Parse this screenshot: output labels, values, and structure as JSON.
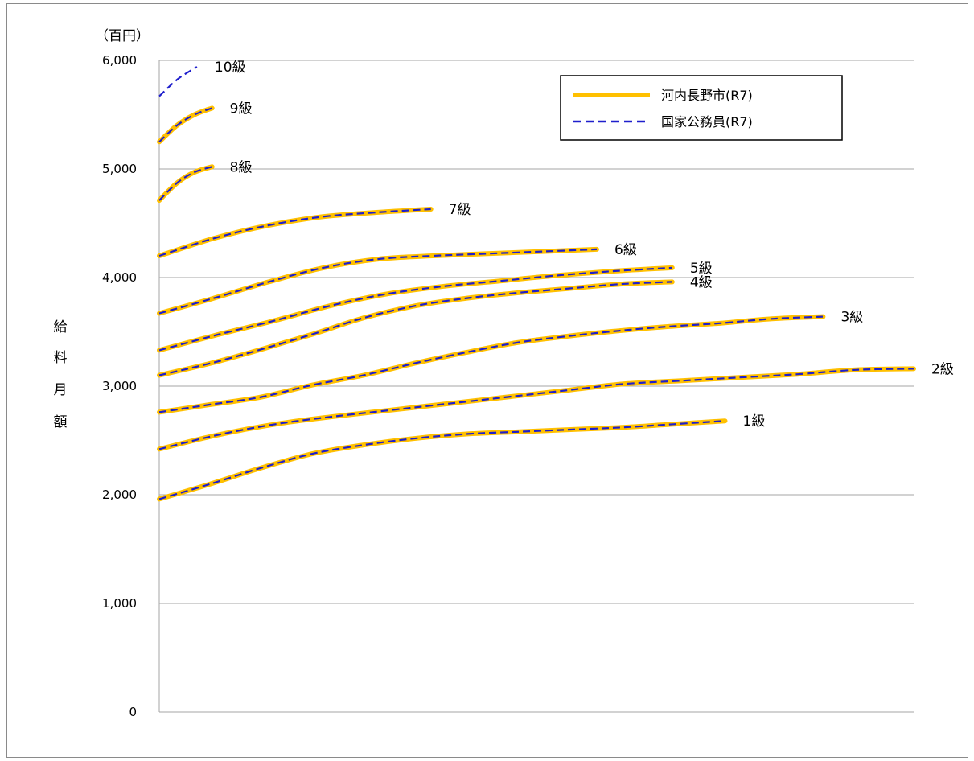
{
  "chart_data": {
    "type": "line",
    "unit_label": "（百円）",
    "ylabel": "給料月額",
    "ylim": [
      0,
      6000
    ],
    "yticks": [
      0,
      1000,
      2000,
      3000,
      4000,
      5000,
      6000
    ],
    "ytick_labels": [
      "0",
      "1,000",
      "2,000",
      "3,000",
      "4,000",
      "5,000",
      "6,000"
    ],
    "grid": true,
    "legend_position": "top-right",
    "legend": [
      {
        "name": "河内長野市(R7)",
        "color": "#FFC000",
        "style": "solid"
      },
      {
        "name": "国家公務員(R7)",
        "color": "#1F1FCC",
        "style": "dashed"
      }
    ],
    "x_max_steps": 100,
    "grades": [
      {
        "label": "1級",
        "steps": 75,
        "y": [
          1960,
          2100,
          2250,
          2380,
          2460,
          2520,
          2560,
          2580,
          2600,
          2620,
          2650,
          2680
        ],
        "city": true
      },
      {
        "label": "2級",
        "steps": 100,
        "y": [
          2420,
          2550,
          2650,
          2720,
          2780,
          2840,
          2900,
          2960,
          3020,
          3050,
          3080,
          3110,
          3150,
          3160
        ],
        "city": true
      },
      {
        "label": "3級",
        "steps": 88,
        "y": [
          2760,
          2830,
          2900,
          3010,
          3100,
          3210,
          3310,
          3400,
          3460,
          3510,
          3550,
          3580,
          3620,
          3640
        ],
        "city": true
      },
      {
        "label": "4級",
        "steps": 68,
        "y": [
          3100,
          3210,
          3340,
          3480,
          3630,
          3740,
          3810,
          3860,
          3900,
          3940,
          3960
        ],
        "city": true
      },
      {
        "label": "5級",
        "steps": 68,
        "y": [
          3330,
          3470,
          3600,
          3740,
          3850,
          3920,
          3970,
          4020,
          4060,
          4090
        ],
        "city": true
      },
      {
        "label": "6級",
        "steps": 58,
        "y": [
          3670,
          3810,
          3960,
          4090,
          4170,
          4200,
          4220,
          4240,
          4260
        ],
        "city": true
      },
      {
        "label": "7級",
        "steps": 36,
        "y": [
          4200,
          4360,
          4480,
          4560,
          4600,
          4630
        ],
        "city": true
      },
      {
        "label": "8級",
        "steps": 7,
        "y": [
          4710,
          4870,
          4970,
          5020
        ],
        "city": true
      },
      {
        "label": "9級",
        "steps": 7,
        "y": [
          5250,
          5400,
          5500,
          5560
        ],
        "city": true
      },
      {
        "label": "10級",
        "steps": 5,
        "y": [
          5670,
          5830,
          5940
        ],
        "city": false
      }
    ]
  }
}
